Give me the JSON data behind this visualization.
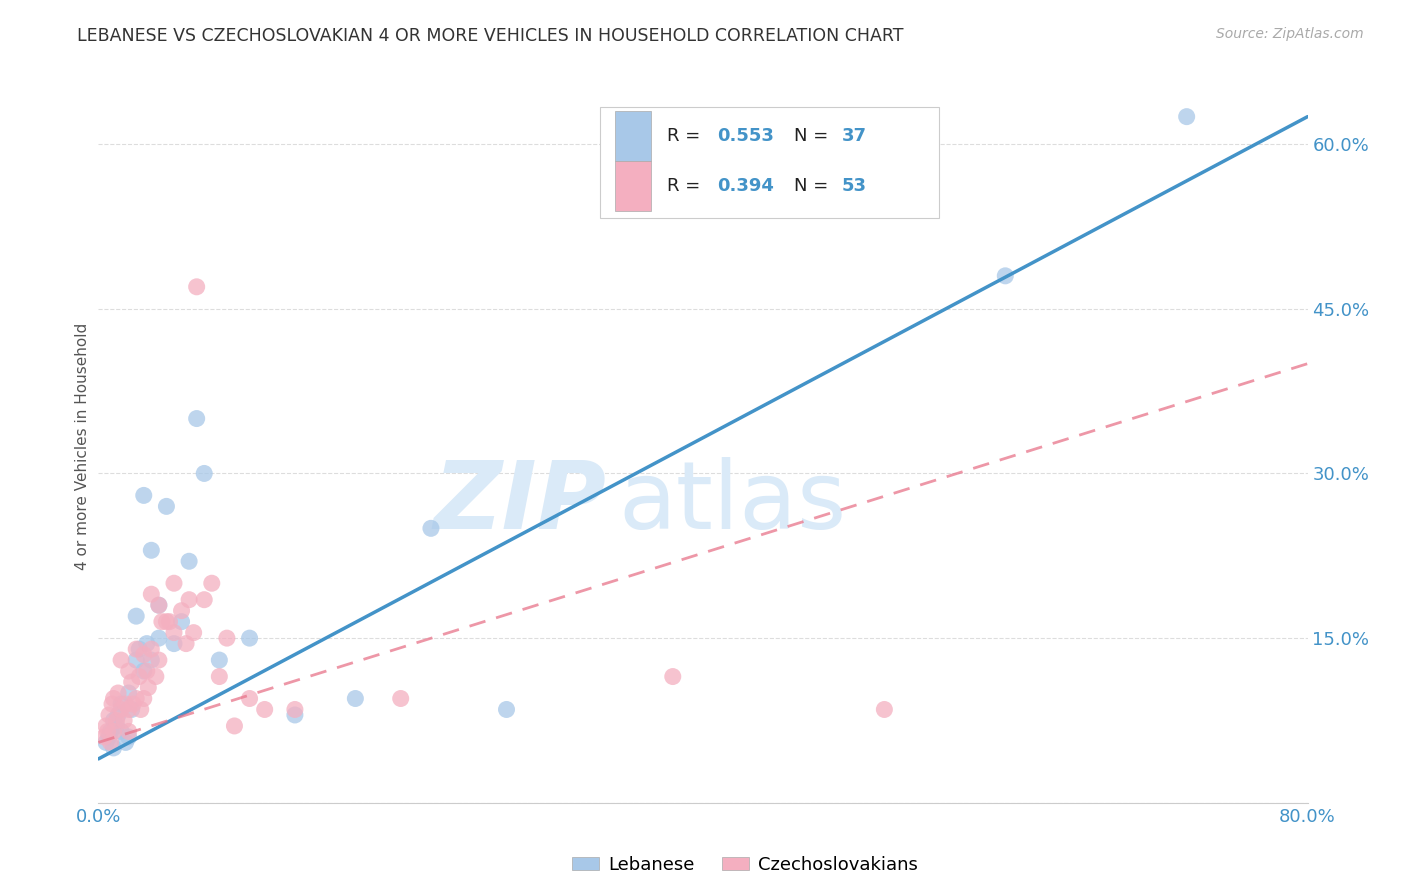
{
  "title": "LEBANESE VS CZECHOSLOVAKIAN 4 OR MORE VEHICLES IN HOUSEHOLD CORRELATION CHART",
  "source": "Source: ZipAtlas.com",
  "ylabel": "4 or more Vehicles in Household",
  "watermark_zip": "ZIP",
  "watermark_atlas": "atlas",
  "xlim": [
    0.0,
    0.8
  ],
  "ylim": [
    0.0,
    0.65
  ],
  "legend_label1": "Lebanese",
  "legend_label2": "Czechoslovakians",
  "blue_scatter_color": "#a8c8e8",
  "pink_scatter_color": "#f4afc0",
  "blue_line_color": "#4393c8",
  "pink_line_color": "#e8748a",
  "title_color": "#333333",
  "source_color": "#aaaaaa",
  "tick_color": "#4393c8",
  "grid_color": "#dddddd",
  "watermark_color": "#daeaf8",
  "R1": 0.553,
  "N1": 37,
  "R2": 0.394,
  "N2": 53,
  "leb_line_x0": 0.0,
  "leb_line_y0": 0.04,
  "leb_line_x1": 0.8,
  "leb_line_y1": 0.625,
  "czech_line_x0": 0.0,
  "czech_line_y0": 0.055,
  "czech_line_x1": 0.8,
  "czech_line_y1": 0.4,
  "lebanese_x": [
    0.005,
    0.007,
    0.008,
    0.01,
    0.01,
    0.012,
    0.013,
    0.015,
    0.015,
    0.018,
    0.02,
    0.02,
    0.022,
    0.025,
    0.025,
    0.027,
    0.03,
    0.03,
    0.032,
    0.035,
    0.035,
    0.04,
    0.04,
    0.045,
    0.05,
    0.055,
    0.06,
    0.065,
    0.07,
    0.08,
    0.1,
    0.13,
    0.17,
    0.22,
    0.27,
    0.6,
    0.72
  ],
  "lebanese_y": [
    0.055,
    0.06,
    0.065,
    0.05,
    0.075,
    0.07,
    0.08,
    0.065,
    0.09,
    0.055,
    0.06,
    0.1,
    0.085,
    0.13,
    0.17,
    0.14,
    0.28,
    0.12,
    0.145,
    0.13,
    0.23,
    0.15,
    0.18,
    0.27,
    0.145,
    0.165,
    0.22,
    0.35,
    0.3,
    0.13,
    0.15,
    0.08,
    0.095,
    0.25,
    0.085,
    0.48,
    0.625
  ],
  "czech_x": [
    0.004,
    0.005,
    0.006,
    0.007,
    0.008,
    0.009,
    0.01,
    0.01,
    0.012,
    0.013,
    0.015,
    0.015,
    0.017,
    0.018,
    0.02,
    0.02,
    0.02,
    0.022,
    0.023,
    0.025,
    0.025,
    0.027,
    0.028,
    0.03,
    0.03,
    0.032,
    0.033,
    0.035,
    0.035,
    0.038,
    0.04,
    0.04,
    0.042,
    0.045,
    0.047,
    0.05,
    0.05,
    0.055,
    0.058,
    0.06,
    0.063,
    0.065,
    0.07,
    0.075,
    0.08,
    0.085,
    0.09,
    0.1,
    0.11,
    0.13,
    0.2,
    0.38,
    0.52
  ],
  "czech_y": [
    0.06,
    0.07,
    0.065,
    0.08,
    0.055,
    0.09,
    0.065,
    0.095,
    0.075,
    0.1,
    0.085,
    0.13,
    0.075,
    0.09,
    0.065,
    0.085,
    0.12,
    0.11,
    0.09,
    0.095,
    0.14,
    0.115,
    0.085,
    0.095,
    0.135,
    0.12,
    0.105,
    0.14,
    0.19,
    0.115,
    0.13,
    0.18,
    0.165,
    0.165,
    0.165,
    0.155,
    0.2,
    0.175,
    0.145,
    0.185,
    0.155,
    0.47,
    0.185,
    0.2,
    0.115,
    0.15,
    0.07,
    0.095,
    0.085,
    0.085,
    0.095,
    0.115,
    0.085
  ]
}
